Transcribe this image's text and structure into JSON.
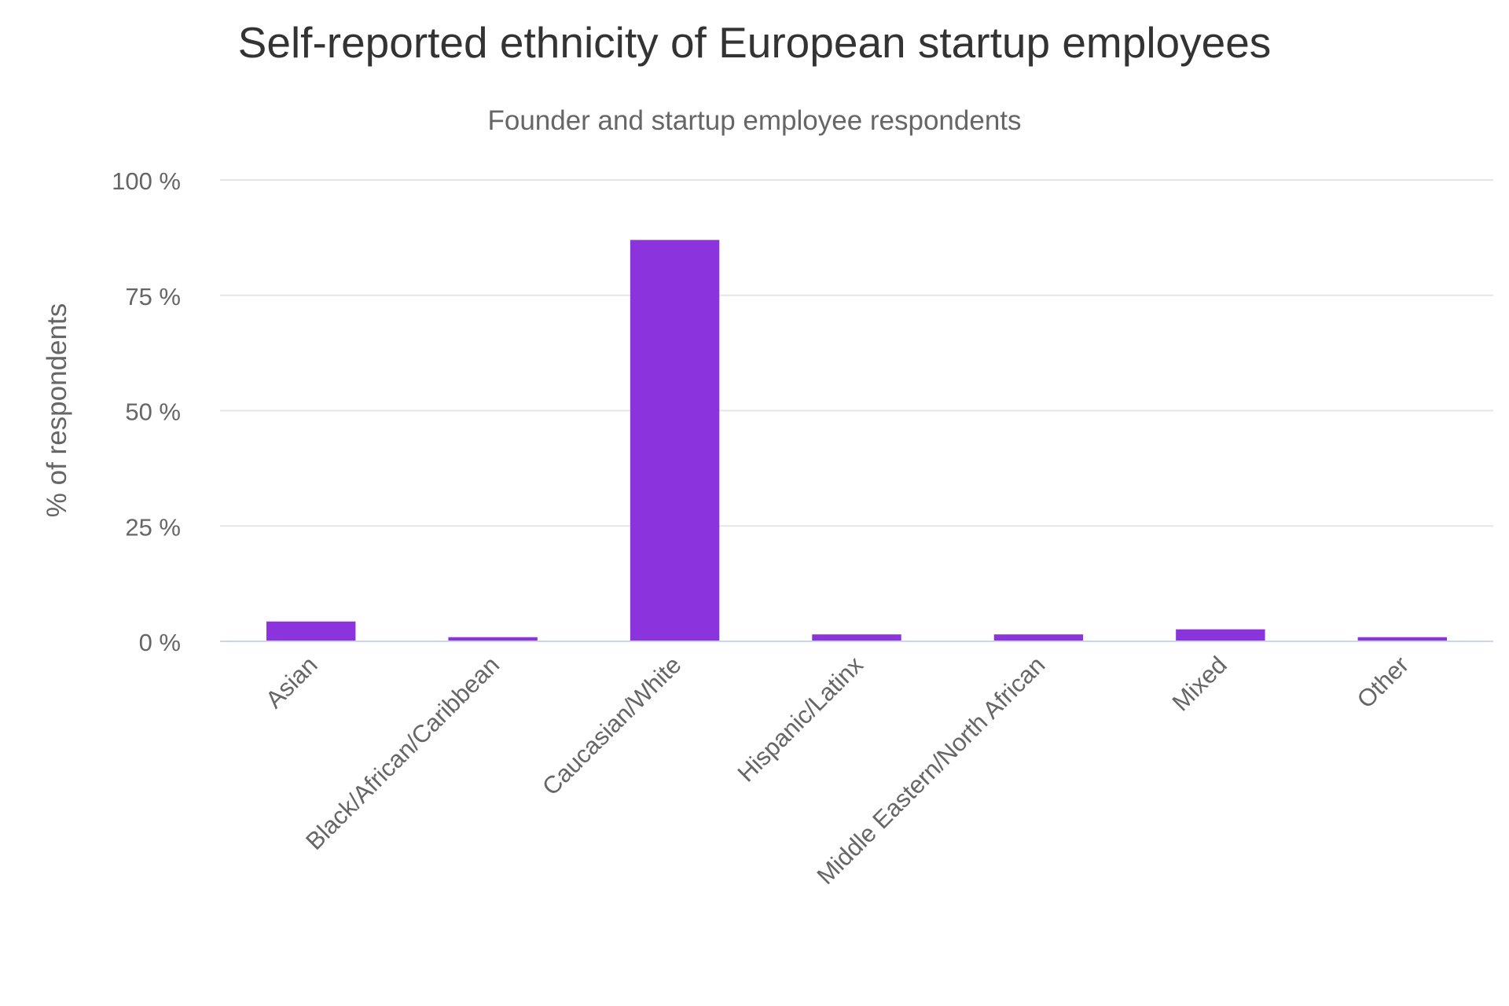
{
  "chart_data": {
    "type": "bar",
    "title": "Self-reported ethnicity of European startup employees",
    "subtitle": "Founder and startup employee respondents",
    "xlabel": "",
    "ylabel": "% of respondents",
    "categories": [
      "Asian",
      "Black/African/Caribbean",
      "Caucasian/White",
      "Hispanic/Latinx",
      "Middle Eastern/North African",
      "Mixed",
      "Other"
    ],
    "values": [
      4.3,
      0.9,
      87.0,
      1.5,
      1.5,
      2.6,
      0.9
    ],
    "ylim": [
      0,
      100
    ],
    "yticks": [
      0,
      25,
      50,
      75,
      100
    ],
    "ytick_labels": [
      "0 %",
      "25 %",
      "50 %",
      "75 %",
      "100 %"
    ],
    "grid": true,
    "legend": "none",
    "colors": {
      "bar": "#8b34de",
      "grid": "#e6e6e6",
      "axis": "#ccd6eb",
      "tick_text": "#666666"
    }
  }
}
